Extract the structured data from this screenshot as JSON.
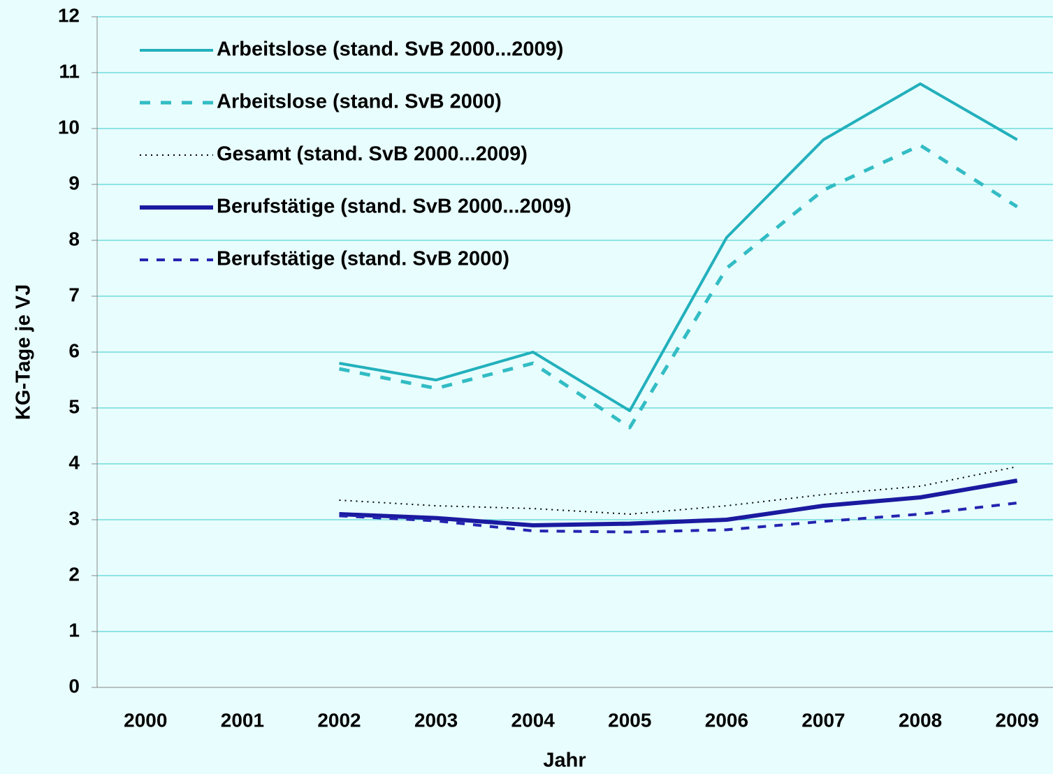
{
  "chart_data": {
    "type": "line",
    "x_label": "Jahr",
    "y_label": "KG-Tage je VJ",
    "categories": [
      "2000",
      "2001",
      "2002",
      "2003",
      "2004",
      "2005",
      "2006",
      "2007",
      "2008",
      "2009"
    ],
    "ylim": [
      0,
      12
    ],
    "yticks": [
      0,
      1,
      2,
      3,
      4,
      5,
      6,
      7,
      8,
      9,
      10,
      11,
      12
    ],
    "grid": true,
    "legend": "top-left",
    "series": [
      {
        "name": "Arbeitslose (stand. SvB 2000...2009)",
        "color": "#22b0bc",
        "dash": "solid",
        "width": 4,
        "values": [
          null,
          null,
          5.8,
          5.5,
          6.0,
          4.95,
          8.05,
          9.8,
          10.8,
          9.8
        ]
      },
      {
        "name": "Arbeitslose (stand. SvB 2000)",
        "color": "#33bcc4",
        "dash": "dashed",
        "width": 5,
        "values": [
          null,
          null,
          5.7,
          5.35,
          5.8,
          4.65,
          7.5,
          8.9,
          9.7,
          8.6
        ]
      },
      {
        "name": "Gesamt (stand. SvB 2000...2009)",
        "color": "#000000",
        "dash": "dotted",
        "width": 2,
        "values": [
          null,
          null,
          3.35,
          3.25,
          3.2,
          3.1,
          3.25,
          3.45,
          3.6,
          3.95
        ]
      },
      {
        "name": "Berufstätige (stand. SvB 2000...2009)",
        "color": "#1a1aa0",
        "dash": "solid",
        "width": 6,
        "values": [
          null,
          null,
          3.1,
          3.03,
          2.9,
          2.93,
          3.0,
          3.25,
          3.4,
          3.7
        ]
      },
      {
        "name": "Berufstätige (stand. SvB 2000)",
        "color": "#2424b0",
        "dash": "dashed",
        "width": 4,
        "values": [
          null,
          null,
          3.07,
          2.98,
          2.8,
          2.78,
          2.82,
          2.97,
          3.1,
          3.3
        ]
      }
    ]
  }
}
